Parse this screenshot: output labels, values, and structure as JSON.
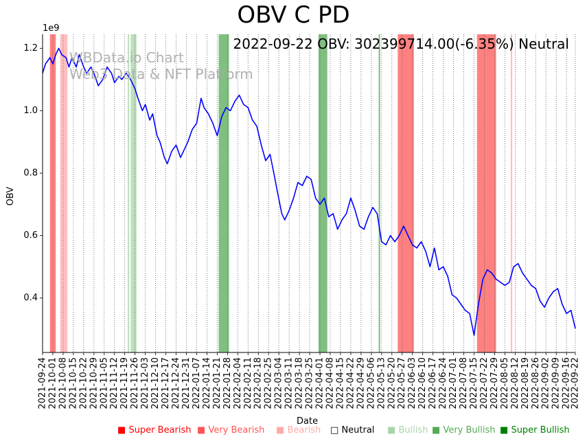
{
  "title": "OBV C PD",
  "info_text": "2022-09-22 OBV: 302399714.00(-6.35%) Neutral",
  "watermark": [
    "WBData.io Chart",
    "Web3 Data & NFT Platform"
  ],
  "axis": {
    "y_label": "OBV",
    "x_label": "Date",
    "y_exponent": "1e9"
  },
  "legend": [
    {
      "label": "Super Bearish",
      "color": "#ff0000"
    },
    {
      "label": "Very Bearish",
      "color": "#ff5555"
    },
    {
      "label": "Bearish",
      "color": "#ffaaaa"
    },
    {
      "label": "Neutral",
      "color": "#000000"
    },
    {
      "label": "Bullish",
      "color": "#aad4aa"
    },
    {
      "label": "Very Bullish",
      "color": "#55aa55"
    },
    {
      "label": "Super Bullish",
      "color": "#008000"
    }
  ],
  "chart_data": {
    "type": "line",
    "title": "OBV C PD",
    "xlabel": "Date",
    "ylabel": "OBV",
    "ylim": [
      0.225,
      1.245
    ],
    "xlim": [
      "2021-09-24",
      "2022-09-22"
    ],
    "yticks": [
      0.4,
      0.6,
      0.8,
      1.0,
      1.2
    ],
    "xticks": [
      "2021-09-24",
      "2021-10-01",
      "2021-10-08",
      "2021-10-15",
      "2021-10-22",
      "2021-10-29",
      "2021-11-05",
      "2021-11-12",
      "2021-11-19",
      "2021-11-26",
      "2021-12-03",
      "2021-12-10",
      "2021-12-17",
      "2021-12-24",
      "2021-12-31",
      "2022-01-07",
      "2022-01-14",
      "2022-01-21",
      "2022-01-28",
      "2022-02-04",
      "2022-02-11",
      "2022-02-18",
      "2022-02-25",
      "2022-03-04",
      "2022-03-11",
      "2022-03-18",
      "2022-03-25",
      "2022-04-01",
      "2022-04-08",
      "2022-04-15",
      "2022-04-22",
      "2022-04-29",
      "2022-05-06",
      "2022-05-13",
      "2022-05-20",
      "2022-05-27",
      "2022-06-03",
      "2022-06-10",
      "2022-06-17",
      "2022-06-24",
      "2022-07-01",
      "2022-07-08",
      "2022-07-15",
      "2022-07-22",
      "2022-07-29",
      "2022-08-05",
      "2022-08-12",
      "2022-08-19",
      "2022-08-26",
      "2022-09-02",
      "2022-09-09",
      "2022-09-16",
      "2022-09-22"
    ],
    "grid": "vertical-dotted",
    "series": [
      {
        "color": "#0000ff",
        "points": [
          [
            "2021-09-24",
            1.12
          ],
          [
            "2021-09-26",
            1.15
          ],
          [
            "2021-09-29",
            1.17
          ],
          [
            "2021-10-01",
            1.15
          ],
          [
            "2021-10-03",
            1.18
          ],
          [
            "2021-10-05",
            1.2
          ],
          [
            "2021-10-07",
            1.18
          ],
          [
            "2021-10-10",
            1.17
          ],
          [
            "2021-10-12",
            1.14
          ],
          [
            "2021-10-14",
            1.17
          ],
          [
            "2021-10-17",
            1.14
          ],
          [
            "2021-10-19",
            1.18
          ],
          [
            "2021-10-22",
            1.14
          ],
          [
            "2021-10-24",
            1.12
          ],
          [
            "2021-10-27",
            1.14
          ],
          [
            "2021-10-29",
            1.12
          ],
          [
            "2021-11-01",
            1.08
          ],
          [
            "2021-11-04",
            1.1
          ],
          [
            "2021-11-07",
            1.14
          ],
          [
            "2021-11-10",
            1.12
          ],
          [
            "2021-11-12",
            1.09
          ],
          [
            "2021-11-15",
            1.11
          ],
          [
            "2021-11-17",
            1.1
          ],
          [
            "2021-11-20",
            1.12
          ],
          [
            "2021-11-23",
            1.1
          ],
          [
            "2021-11-26",
            1.07
          ],
          [
            "2021-11-28",
            1.04
          ],
          [
            "2021-12-01",
            1.0
          ],
          [
            "2021-12-03",
            1.02
          ],
          [
            "2021-12-06",
            0.97
          ],
          [
            "2021-12-08",
            0.99
          ],
          [
            "2021-12-11",
            0.92
          ],
          [
            "2021-12-13",
            0.9
          ],
          [
            "2021-12-16",
            0.85
          ],
          [
            "2021-12-18",
            0.83
          ],
          [
            "2021-12-21",
            0.87
          ],
          [
            "2021-12-24",
            0.89
          ],
          [
            "2021-12-27",
            0.85
          ],
          [
            "2021-12-30",
            0.88
          ],
          [
            "2022-01-01",
            0.9
          ],
          [
            "2022-01-04",
            0.94
          ],
          [
            "2022-01-07",
            0.96
          ],
          [
            "2022-01-10",
            1.04
          ],
          [
            "2022-01-12",
            1.01
          ],
          [
            "2022-01-15",
            0.99
          ],
          [
            "2022-01-18",
            0.96
          ],
          [
            "2022-01-21",
            0.92
          ],
          [
            "2022-01-24",
            0.98
          ],
          [
            "2022-01-27",
            1.01
          ],
          [
            "2022-01-30",
            1.0
          ],
          [
            "2022-02-02",
            1.03
          ],
          [
            "2022-02-05",
            1.05
          ],
          [
            "2022-02-08",
            1.02
          ],
          [
            "2022-02-11",
            1.01
          ],
          [
            "2022-02-14",
            0.97
          ],
          [
            "2022-02-17",
            0.95
          ],
          [
            "2022-02-20",
            0.89
          ],
          [
            "2022-02-23",
            0.84
          ],
          [
            "2022-02-26",
            0.86
          ],
          [
            "2022-03-01",
            0.79
          ],
          [
            "2022-03-03",
            0.74
          ],
          [
            "2022-03-06",
            0.67
          ],
          [
            "2022-03-08",
            0.65
          ],
          [
            "2022-03-11",
            0.68
          ],
          [
            "2022-03-14",
            0.72
          ],
          [
            "2022-03-17",
            0.77
          ],
          [
            "2022-03-20",
            0.76
          ],
          [
            "2022-03-23",
            0.79
          ],
          [
            "2022-03-26",
            0.78
          ],
          [
            "2022-03-29",
            0.72
          ],
          [
            "2022-04-01",
            0.7
          ],
          [
            "2022-04-04",
            0.72
          ],
          [
            "2022-04-07",
            0.66
          ],
          [
            "2022-04-10",
            0.67
          ],
          [
            "2022-04-13",
            0.62
          ],
          [
            "2022-04-16",
            0.65
          ],
          [
            "2022-04-19",
            0.67
          ],
          [
            "2022-04-22",
            0.72
          ],
          [
            "2022-04-25",
            0.68
          ],
          [
            "2022-04-28",
            0.63
          ],
          [
            "2022-05-01",
            0.62
          ],
          [
            "2022-05-04",
            0.66
          ],
          [
            "2022-05-07",
            0.69
          ],
          [
            "2022-05-10",
            0.67
          ],
          [
            "2022-05-13",
            0.58
          ],
          [
            "2022-05-16",
            0.57
          ],
          [
            "2022-05-19",
            0.6
          ],
          [
            "2022-05-22",
            0.58
          ],
          [
            "2022-05-25",
            0.6
          ],
          [
            "2022-05-28",
            0.63
          ],
          [
            "2022-05-31",
            0.6
          ],
          [
            "2022-06-03",
            0.57
          ],
          [
            "2022-06-06",
            0.56
          ],
          [
            "2022-06-09",
            0.58
          ],
          [
            "2022-06-12",
            0.55
          ],
          [
            "2022-06-15",
            0.5
          ],
          [
            "2022-06-18",
            0.56
          ],
          [
            "2022-06-21",
            0.49
          ],
          [
            "2022-06-24",
            0.5
          ],
          [
            "2022-06-27",
            0.47
          ],
          [
            "2022-06-30",
            0.41
          ],
          [
            "2022-07-03",
            0.4
          ],
          [
            "2022-07-06",
            0.38
          ],
          [
            "2022-07-09",
            0.36
          ],
          [
            "2022-07-12",
            0.35
          ],
          [
            "2022-07-15",
            0.28
          ],
          [
            "2022-07-18",
            0.38
          ],
          [
            "2022-07-21",
            0.46
          ],
          [
            "2022-07-24",
            0.49
          ],
          [
            "2022-07-27",
            0.48
          ],
          [
            "2022-07-30",
            0.46
          ],
          [
            "2022-08-02",
            0.45
          ],
          [
            "2022-08-05",
            0.44
          ],
          [
            "2022-08-08",
            0.45
          ],
          [
            "2022-08-11",
            0.5
          ],
          [
            "2022-08-14",
            0.51
          ],
          [
            "2022-08-17",
            0.48
          ],
          [
            "2022-08-20",
            0.46
          ],
          [
            "2022-08-23",
            0.44
          ],
          [
            "2022-08-26",
            0.43
          ],
          [
            "2022-08-29",
            0.39
          ],
          [
            "2022-09-01",
            0.37
          ],
          [
            "2022-09-04",
            0.4
          ],
          [
            "2022-09-07",
            0.42
          ],
          [
            "2022-09-10",
            0.43
          ],
          [
            "2022-09-13",
            0.38
          ],
          [
            "2022-09-16",
            0.35
          ],
          [
            "2022-09-19",
            0.36
          ],
          [
            "2022-09-22",
            0.302
          ]
        ]
      }
    ],
    "shaded_spans": [
      {
        "start": "2021-09-29",
        "end": "2021-10-03",
        "signal": "Very Bearish",
        "color": "#ff5555"
      },
      {
        "start": "2021-10-06",
        "end": "2021-10-11",
        "signal": "Bearish",
        "color": "#ffaaaa"
      },
      {
        "start": "2021-11-21",
        "end": "2021-11-22",
        "signal": "Bullish",
        "color": "#aad4aa"
      },
      {
        "start": "2021-11-23",
        "end": "2021-11-27",
        "signal": "Bullish",
        "color": "#aad4aa"
      },
      {
        "start": "2022-01-22",
        "end": "2022-01-29",
        "signal": "Very Bullish",
        "color": "#55aa55"
      },
      {
        "start": "2022-03-31",
        "end": "2022-04-06",
        "signal": "Very Bullish",
        "color": "#55aa55"
      },
      {
        "start": "2022-05-11",
        "end": "2022-05-12",
        "signal": "Very Bullish",
        "color": "#55aa55"
      },
      {
        "start": "2022-05-24",
        "end": "2022-06-04",
        "signal": "Very Bearish",
        "color": "#ff5555"
      },
      {
        "start": "2022-07-17",
        "end": "2022-07-30",
        "signal": "Very Bearish",
        "color": "#ff5555"
      },
      {
        "start": "2022-08-09",
        "end": "2022-08-10",
        "signal": "Bearish",
        "color": "#ffaaaa"
      }
    ]
  }
}
